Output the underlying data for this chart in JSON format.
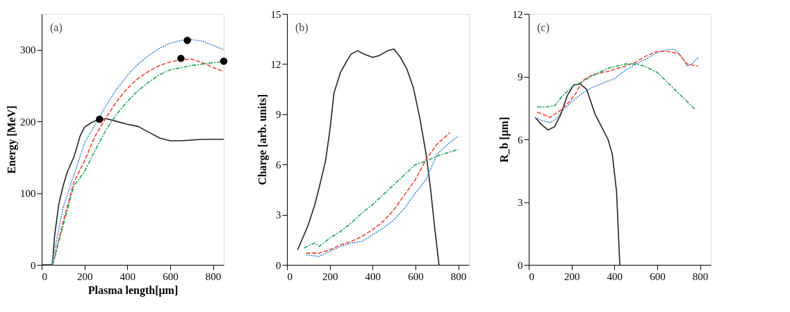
{
  "chart_data": [
    {
      "type": "line",
      "xlabel": "Plasma length[μm]",
      "ylabel": "Energy [MeV]",
      "annotations": [
        "(a)"
      ],
      "xlim": [
        0,
        850
      ],
      "ylim": [
        0,
        350
      ],
      "xticks": [
        0,
        200,
        400,
        600,
        800
      ],
      "yticks": [
        0,
        100,
        200,
        300
      ],
      "grid": false,
      "series": [
        {
          "color": "#222222",
          "line_style": "solid",
          "x": [
            0,
            45,
            50,
            60,
            80,
            100,
            120,
            150,
            170,
            180,
            200,
            230,
            260,
            300,
            350,
            400,
            450,
            500,
            550,
            600,
            650,
            700,
            750,
            800,
            850
          ],
          "values": [
            0,
            0,
            0,
            40,
            85,
            110,
            130,
            150,
            170,
            180,
            192,
            198,
            202,
            204,
            200,
            196,
            193,
            185,
            177,
            173,
            173,
            174,
            175,
            175,
            175
          ]
        },
        {
          "color": "#3b83d9",
          "line_style": "dotted",
          "x": [
            45,
            50,
            80,
            100,
            150,
            200,
            250,
            300,
            350,
            400,
            450,
            500,
            550,
            600,
            650,
            700,
            750,
            800,
            850
          ],
          "values": [
            0,
            5,
            50,
            80,
            125,
            170,
            196,
            222,
            245,
            264,
            280,
            292,
            302,
            309,
            313,
            314,
            312,
            306,
            300
          ]
        },
        {
          "color": "#ee4433",
          "line_style": "dashed",
          "x": [
            50,
            60,
            100,
            150,
            200,
            250,
            300,
            350,
            400,
            450,
            500,
            550,
            600,
            650,
            700,
            750,
            800,
            850
          ],
          "values": [
            0,
            10,
            60,
            115,
            145,
            180,
            205,
            228,
            246,
            260,
            270,
            278,
            283,
            286,
            287,
            282,
            275,
            270
          ]
        },
        {
          "color": "#22a05a",
          "line_style": "dashdot",
          "x": [
            50,
            60,
            100,
            150,
            200,
            250,
            300,
            350,
            400,
            450,
            500,
            550,
            600,
            650,
            700,
            750,
            800,
            850
          ],
          "values": [
            0,
            10,
            55,
            110,
            130,
            160,
            188,
            210,
            228,
            243,
            255,
            265,
            272,
            275,
            278,
            280,
            282,
            283
          ]
        },
        {
          "type": "scatter",
          "marker": "circle",
          "color": "#000000",
          "x": [
            270,
            680,
            650,
            850
          ],
          "values": [
            203,
            313,
            288,
            284
          ]
        }
      ]
    },
    {
      "type": "line",
      "ylabel": "Charge [arb. units]",
      "annotations": [
        "(b)"
      ],
      "xlim": [
        0,
        850
      ],
      "ylim": [
        0,
        15
      ],
      "xticks": [
        0,
        200,
        400,
        600,
        800
      ],
      "yticks": [
        0,
        3,
        6,
        9,
        12,
        15
      ],
      "grid": false,
      "series": [
        {
          "color": "#222222",
          "line_style": "solid",
          "x": [
            50,
            80,
            100,
            130,
            150,
            180,
            200,
            220,
            250,
            280,
            300,
            330,
            360,
            400,
            430,
            470,
            500,
            530,
            560,
            590,
            620,
            650,
            670,
            690,
            710
          ],
          "values": [
            0.9,
            1.8,
            2.4,
            3.6,
            4.6,
            6.2,
            8.0,
            10.3,
            11.5,
            12.2,
            12.6,
            12.8,
            12.6,
            12.4,
            12.5,
            12.8,
            12.9,
            12.4,
            11.7,
            10.6,
            8.8,
            6.6,
            4.6,
            2.2,
            0
          ]
        },
        {
          "color": "#3b83d9",
          "line_style": "dotted",
          "x": [
            90,
            150,
            200,
            250,
            300,
            350,
            400,
            450,
            500,
            550,
            600,
            650,
            680,
            700,
            750,
            800
          ],
          "values": [
            0.6,
            0.5,
            0.8,
            1.1,
            1.3,
            1.4,
            1.8,
            2.2,
            2.7,
            3.4,
            4.3,
            5.1,
            6.0,
            6.6,
            7.2,
            7.7
          ]
        },
        {
          "color": "#ee4433",
          "line_style": "dashed",
          "x": [
            90,
            150,
            200,
            250,
            300,
            350,
            400,
            450,
            500,
            550,
            600,
            650,
            700,
            760
          ],
          "values": [
            0.7,
            0.7,
            0.9,
            1.2,
            1.4,
            1.7,
            2.1,
            2.6,
            3.3,
            4.2,
            5.1,
            6.3,
            7.2,
            7.9
          ]
        },
        {
          "color": "#22a05a",
          "line_style": "dashdot",
          "x": [
            80,
            100,
            130,
            150,
            200,
            250,
            300,
            350,
            400,
            450,
            500,
            550,
            600,
            650,
            700,
            750,
            800
          ],
          "values": [
            1.0,
            1.15,
            1.3,
            1.1,
            1.6,
            2.0,
            2.5,
            3.1,
            3.6,
            4.2,
            4.8,
            5.4,
            6.0,
            6.2,
            6.5,
            6.7,
            6.9
          ]
        }
      ]
    },
    {
      "type": "line",
      "ylabel": "R_b [μm]",
      "annotations": [
        "(c)"
      ],
      "xlim": [
        0,
        850
      ],
      "ylim": [
        0,
        12
      ],
      "xticks": [
        0,
        200,
        400,
        600,
        800
      ],
      "yticks": [
        0,
        3,
        6,
        9,
        12
      ],
      "grid": false,
      "series": [
        {
          "color": "#222222",
          "line_style": "solid",
          "x": [
            30,
            60,
            90,
            120,
            150,
            180,
            210,
            240,
            270,
            290,
            310,
            340,
            370,
            390,
            410,
            425
          ],
          "values": [
            7.05,
            6.7,
            6.45,
            6.6,
            7.2,
            8.1,
            8.6,
            8.65,
            8.4,
            7.8,
            7.2,
            6.6,
            6.0,
            5.3,
            3.5,
            0
          ]
        },
        {
          "color": "#3b83d9",
          "line_style": "dotted",
          "x": [
            30,
            60,
            100,
            130,
            150,
            200,
            250,
            300,
            350,
            400,
            450,
            500,
            550,
            600,
            650,
            680,
            710,
            740,
            760,
            790
          ],
          "values": [
            7.05,
            6.9,
            6.8,
            7.0,
            7.3,
            7.8,
            8.2,
            8.5,
            8.7,
            8.9,
            9.3,
            9.6,
            9.85,
            10.15,
            10.3,
            10.3,
            10.0,
            9.5,
            9.6,
            9.9
          ]
        },
        {
          "color": "#ee4433",
          "line_style": "dashed",
          "x": [
            40,
            100,
            150,
            190,
            220,
            250,
            300,
            370,
            450,
            500,
            550,
            600,
            650,
            700,
            740,
            790
          ],
          "values": [
            7.3,
            7.05,
            7.4,
            7.8,
            8.2,
            8.8,
            9.1,
            9.25,
            9.5,
            9.7,
            10.0,
            10.2,
            10.2,
            10.1,
            9.6,
            9.5
          ]
        },
        {
          "color": "#22a05a",
          "line_style": "dashdot",
          "x": [
            40,
            80,
            120,
            160,
            200,
            240,
            290,
            370,
            450,
            500,
            540,
            600,
            650,
            700,
            780
          ],
          "values": [
            7.55,
            7.55,
            7.6,
            8.1,
            8.5,
            8.7,
            9.0,
            9.4,
            9.6,
            9.6,
            9.5,
            9.2,
            8.7,
            8.2,
            7.4
          ]
        }
      ]
    }
  ]
}
